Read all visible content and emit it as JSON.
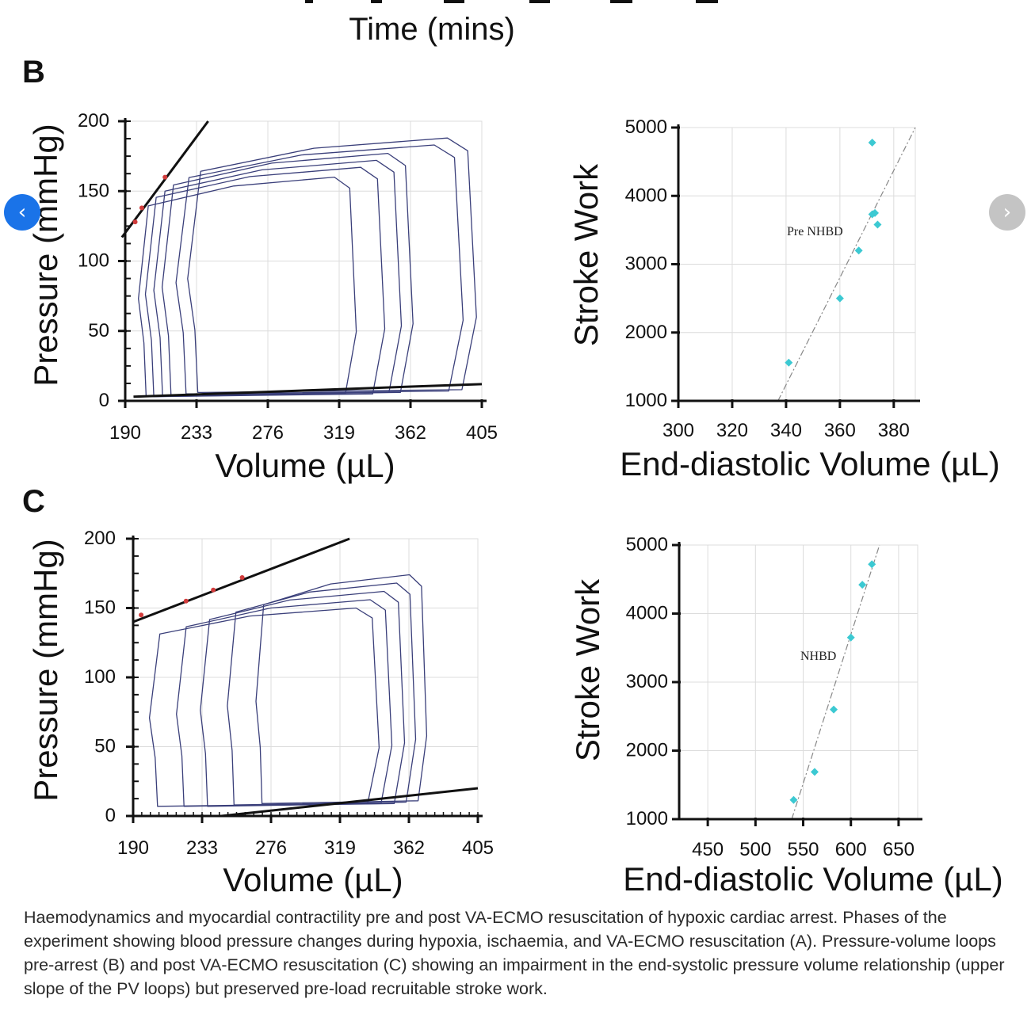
{
  "figure": {
    "top_axis_title": "Time (mins)",
    "panel_b_label": "B",
    "panel_c_label": "C",
    "pv_ylabel": "Pressure (mmHg)",
    "pv_xlabel": "Volume (µL)",
    "sw_ylabel": "Stroke Work",
    "sw_xlabel": "End-diastolic Volume (µL)"
  },
  "nav": {
    "prev_icon": "‹",
    "next_icon": "›"
  },
  "caption": "Haemodynamics and myocardial contractility pre and post VA-ECMO resuscitation of hypoxic cardiac arrest. Phases of the experiment showing blood pressure changes during hypoxia, ischaemia, and VA-ECMO resuscitation (A). Pressure-volume loops pre-arrest (B) and post VA-ECMO resuscitation (C) showing an impairment in the end-systolic pressure volume relationship (upper slope of the PV loops) but preserved pre-load recruitable stroke work.",
  "colors": {
    "loop": "#3a3f7a",
    "relation_line": "#111111",
    "marker_red": "#d23c3c",
    "sw_point": "#3cc9d2",
    "grid": "#dcdcdc"
  },
  "chart_data": [
    {
      "id": "B-pv",
      "type": "line",
      "xlabel": "Volume (µL)",
      "ylabel": "Pressure (mmHg)",
      "xlim": [
        190,
        405
      ],
      "ylim": [
        0,
        200
      ],
      "xticks": [
        "190",
        "233",
        "276",
        "319",
        "362",
        "405"
      ],
      "yticks": [
        "0",
        "50",
        "100",
        "150",
        "200"
      ],
      "espvr_line": [
        [
          188,
          117
        ],
        [
          240,
          200
        ]
      ],
      "edpvr_line": [
        [
          195,
          3
        ],
        [
          405,
          12
        ]
      ],
      "esp_points": [
        [
          196,
          128
        ],
        [
          200,
          138
        ],
        [
          214,
          160
        ]
      ],
      "loops": [
        {
          "x_ed": 328,
          "x_es": 196,
          "p_min": 2,
          "p_max": 160
        },
        {
          "x_ed": 345,
          "x_es": 200,
          "p_min": 2,
          "p_max": 167
        },
        {
          "x_ed": 355,
          "x_es": 205,
          "p_min": 3,
          "p_max": 172
        },
        {
          "x_ed": 362,
          "x_es": 210,
          "p_min": 3,
          "p_max": 177
        },
        {
          "x_ed": 392,
          "x_es": 218,
          "p_min": 4,
          "p_max": 183
        },
        {
          "x_ed": 400,
          "x_es": 225,
          "p_min": 5,
          "p_max": 188
        }
      ]
    },
    {
      "id": "B-sw",
      "type": "scatter",
      "xlabel": "End-diastolic Volume (µL)",
      "ylabel": "Stroke Work",
      "xlim": [
        300,
        388
      ],
      "ylim": [
        1000,
        5000
      ],
      "xticks": [
        "300",
        "320",
        "340",
        "360",
        "380"
      ],
      "yticks": [
        "1000",
        "2000",
        "3000",
        "4000",
        "5000"
      ],
      "annotation": "Pre NHBD",
      "points": [
        [
          341,
          1560
        ],
        [
          360,
          2500
        ],
        [
          367,
          3200
        ],
        [
          372,
          3730
        ],
        [
          373,
          3750
        ],
        [
          374,
          3580
        ],
        [
          372,
          4780
        ]
      ],
      "fit_line": [
        [
          337,
          1000
        ],
        [
          388,
          5000
        ]
      ]
    },
    {
      "id": "C-pv",
      "type": "line",
      "xlabel": "Volume (µL)",
      "ylabel": "Pressure (mmHg)",
      "xlim": [
        190,
        405
      ],
      "ylim": [
        0,
        200
      ],
      "xticks": [
        "190",
        "233",
        "276",
        "319",
        "362",
        "405"
      ],
      "yticks": [
        "0",
        "50",
        "100",
        "150",
        "200"
      ],
      "espvr_line": [
        [
          190,
          140
        ],
        [
          325,
          200
        ]
      ],
      "edpvr_line": [
        [
          245,
          0
        ],
        [
          405,
          20
        ]
      ],
      "esp_points": [
        [
          195,
          145
        ],
        [
          223,
          155
        ],
        [
          240,
          163
        ],
        [
          258,
          172
        ]
      ],
      "loops": [
        {
          "x_ed": 342,
          "x_es": 198,
          "p_min": 6,
          "p_max": 150
        },
        {
          "x_ed": 350,
          "x_es": 215,
          "p_min": 6,
          "p_max": 156
        },
        {
          "x_ed": 358,
          "x_es": 230,
          "p_min": 6,
          "p_max": 162
        },
        {
          "x_ed": 365,
          "x_es": 247,
          "p_min": 7,
          "p_max": 168
        },
        {
          "x_ed": 372,
          "x_es": 265,
          "p_min": 8,
          "p_max": 174
        }
      ]
    },
    {
      "id": "C-sw",
      "type": "scatter",
      "xlabel": "End-diastolic Volume (µL)",
      "ylabel": "Stroke Work",
      "xlim": [
        420,
        670
      ],
      "ylim": [
        1000,
        5000
      ],
      "xticks": [
        "450",
        "500",
        "550",
        "600",
        "650"
      ],
      "yticks": [
        "1000",
        "2000",
        "3000",
        "4000",
        "5000"
      ],
      "annotation": "NHBD",
      "points": [
        [
          540,
          1280
        ],
        [
          562,
          1690
        ],
        [
          582,
          2600
        ],
        [
          600,
          3650
        ],
        [
          612,
          4420
        ],
        [
          622,
          4720
        ]
      ],
      "fit_line": [
        [
          538,
          1000
        ],
        [
          630,
          5000
        ]
      ]
    }
  ]
}
